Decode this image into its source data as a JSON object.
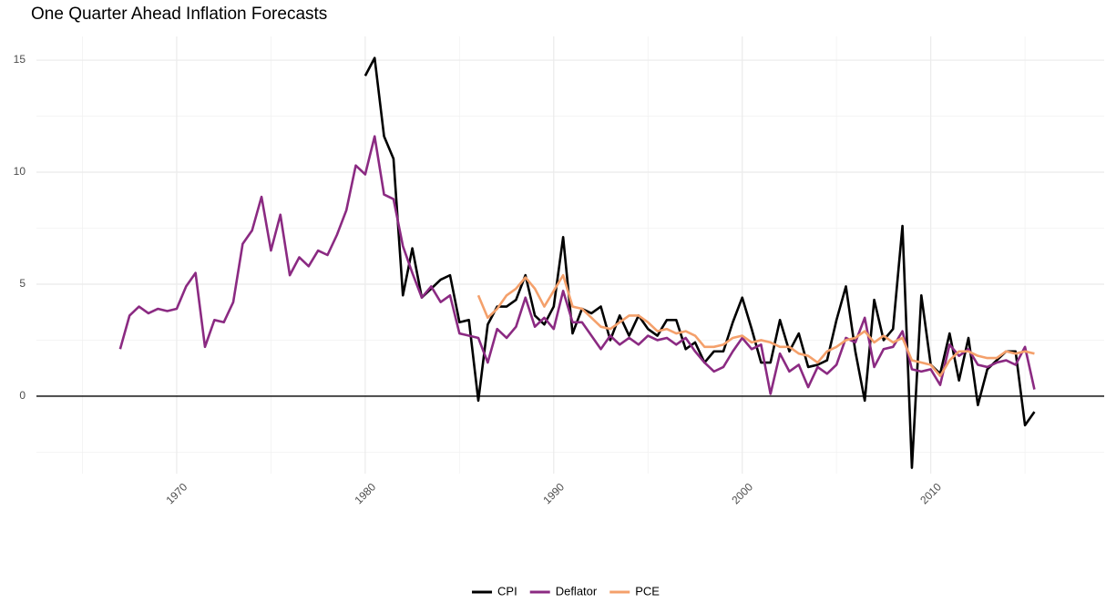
{
  "chart_data": {
    "type": "line",
    "title": "One Quarter Ahead Inflation Forecasts",
    "x": [
      1967,
      1967.5,
      1968,
      1968.5,
      1969,
      1969.5,
      1970,
      1970.5,
      1971,
      1971.5,
      1972,
      1972.5,
      1973,
      1973.5,
      1974,
      1974.5,
      1975,
      1975.5,
      1976,
      1976.5,
      1977,
      1977.5,
      1978,
      1978.5,
      1979,
      1979.5,
      1980,
      1980.5,
      1981,
      1981.5,
      1982,
      1982.5,
      1983,
      1983.5,
      1984,
      1984.5,
      1985,
      1985.5,
      1986,
      1986.5,
      1987,
      1987.5,
      1988,
      1988.5,
      1989,
      1989.5,
      1990,
      1990.5,
      1991,
      1991.5,
      1992,
      1992.5,
      1993,
      1993.5,
      1994,
      1994.5,
      1995,
      1995.5,
      1996,
      1996.5,
      1997,
      1997.5,
      1998,
      1998.5,
      1999,
      1999.5,
      2000,
      2000.5,
      2001,
      2001.5,
      2002,
      2002.5,
      2003,
      2003.5,
      2004,
      2004.5,
      2005,
      2005.5,
      2006,
      2006.5,
      2007,
      2007.5,
      2008,
      2008.5,
      2009,
      2009.5,
      2010,
      2010.5,
      2011,
      2011.5,
      2012,
      2012.5,
      2013,
      2013.5,
      2014,
      2014.5,
      2015,
      2015.5
    ],
    "series": [
      {
        "name": "CPI",
        "color": "#000000",
        "values": [
          null,
          null,
          null,
          null,
          null,
          null,
          null,
          null,
          null,
          null,
          null,
          null,
          null,
          null,
          null,
          null,
          null,
          null,
          null,
          null,
          null,
          null,
          null,
          null,
          null,
          null,
          14.3,
          15.1,
          11.6,
          10.6,
          4.5,
          6.6,
          4.4,
          4.8,
          5.2,
          5.4,
          3.3,
          3.4,
          -0.2,
          3.2,
          4.0,
          4.0,
          4.3,
          5.4,
          3.6,
          3.2,
          4.0,
          7.1,
          2.8,
          3.9,
          3.7,
          4.0,
          2.5,
          3.6,
          2.7,
          3.6,
          3.0,
          2.7,
          3.4,
          3.4,
          2.1,
          2.4,
          1.5,
          2.0,
          2.0,
          3.3,
          4.4,
          3.0,
          1.5,
          1.5,
          3.4,
          2.0,
          2.8,
          1.3,
          1.4,
          1.6,
          3.4,
          4.9,
          2.0,
          -0.2,
          4.3,
          2.5,
          3.0,
          7.6,
          -3.2,
          4.5,
          1.4,
          1.0,
          2.8,
          0.7,
          2.6,
          -0.4,
          1.2,
          1.6,
          2.0,
          2.0,
          -1.3,
          -0.7
        ]
      },
      {
        "name": "Deflator",
        "color": "#8b2a82",
        "values": [
          2.1,
          3.6,
          4.0,
          3.7,
          3.9,
          3.8,
          3.9,
          4.9,
          5.5,
          2.2,
          3.4,
          3.3,
          4.2,
          6.8,
          7.4,
          8.9,
          6.5,
          8.1,
          5.4,
          6.2,
          5.8,
          6.5,
          6.3,
          7.2,
          8.3,
          10.3,
          9.9,
          11.6,
          9.0,
          8.8,
          6.7,
          5.5,
          4.4,
          4.9,
          4.2,
          4.5,
          2.8,
          2.7,
          2.6,
          1.5,
          3.0,
          2.6,
          3.1,
          4.4,
          3.1,
          3.5,
          3.0,
          4.7,
          3.3,
          3.3,
          2.7,
          2.1,
          2.7,
          2.3,
          2.6,
          2.3,
          2.7,
          2.5,
          2.6,
          2.3,
          2.6,
          2.0,
          1.5,
          1.1,
          1.3,
          2.0,
          2.6,
          2.1,
          2.3,
          0.1,
          1.9,
          1.1,
          1.4,
          0.4,
          1.3,
          1.0,
          1.4,
          2.6,
          2.4,
          3.5,
          1.3,
          2.1,
          2.2,
          2.9,
          1.2,
          1.1,
          1.2,
          0.5,
          2.3,
          1.8,
          2.1,
          1.4,
          1.3,
          1.5,
          1.6,
          1.4,
          2.2,
          0.3
        ]
      },
      {
        "name": "PCE",
        "color": "#f4a06b",
        "values": [
          null,
          null,
          null,
          null,
          null,
          null,
          null,
          null,
          null,
          null,
          null,
          null,
          null,
          null,
          null,
          null,
          null,
          null,
          null,
          null,
          null,
          null,
          null,
          null,
          null,
          null,
          null,
          null,
          null,
          null,
          null,
          null,
          null,
          null,
          null,
          null,
          null,
          null,
          4.5,
          3.5,
          3.9,
          4.5,
          4.8,
          5.3,
          4.8,
          4.0,
          4.7,
          5.4,
          4.0,
          3.9,
          3.5,
          3.1,
          3.0,
          3.3,
          3.6,
          3.6,
          3.3,
          2.9,
          3.0,
          2.8,
          2.9,
          2.7,
          2.2,
          2.2,
          2.3,
          2.6,
          2.7,
          2.4,
          2.5,
          2.4,
          2.2,
          2.2,
          1.9,
          1.8,
          1.5,
          2.0,
          2.2,
          2.5,
          2.6,
          2.9,
          2.4,
          2.7,
          2.4,
          2.6,
          1.6,
          1.5,
          1.4,
          0.9,
          1.6,
          2.0,
          2.0,
          1.8,
          1.7,
          1.7,
          2.0,
          1.9,
          2.0,
          1.9
        ]
      }
    ],
    "xlim": [
      1962.56,
      2019.2
    ],
    "xticks": [
      1970,
      1980,
      1990,
      2000,
      2010
    ],
    "ylim": [
      -3.46,
      16.06
    ],
    "yticks": [
      0,
      5,
      10,
      15
    ],
    "hline": 0,
    "grid": true,
    "legend": "bottom"
  }
}
